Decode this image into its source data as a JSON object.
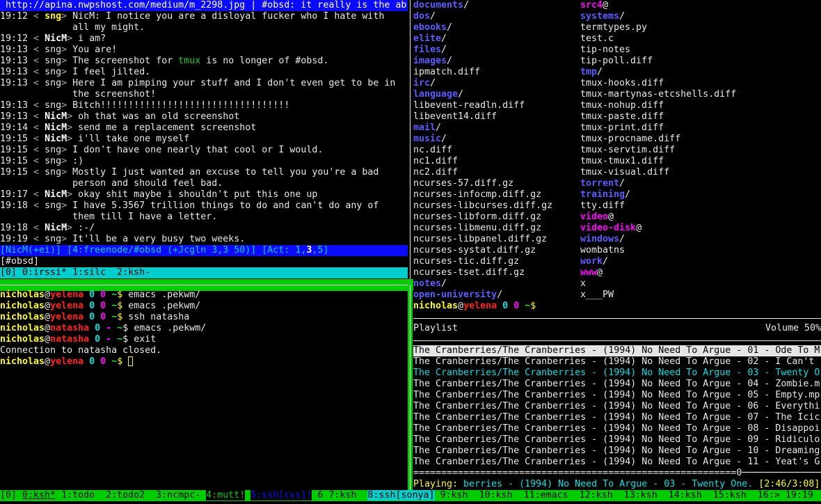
{
  "colors": {
    "fg": "#e8e8e8",
    "dim": "#a8a8a8",
    "yellow": "#ffff00",
    "red": "#ff2020",
    "cyan": "#00e0e0",
    "magenta": "#ff00ff",
    "green": "#00cd00",
    "tmux_green": "#20d020",
    "dir": "#5c5cff",
    "blue": "#0a0aff",
    "statcyan": "#00cdcd",
    "black": "#000000",
    "white": "#ffffff"
  },
  "irssi": {
    "topic": " http://apina.nwpshost.com/medium/m_2298.jpg | #obsd: it really is the ab",
    "messages": [
      {
        "time": "19:12",
        "nick": "sng",
        "nick_style": "highlight",
        "lines": [
          [
            [
              "NicM: I notice you are a disloyal fucker who I hate with",
              "fg"
            ]
          ],
          [
            [
              "all my might.",
              "fg"
            ]
          ]
        ]
      },
      {
        "time": "19:12",
        "nick": "NicM",
        "nick_style": "own",
        "lines": [
          [
            [
              "i am?",
              "fg"
            ]
          ]
        ]
      },
      {
        "time": "19:13",
        "nick": "sng",
        "nick_style": "normal",
        "lines": [
          [
            [
              "You are!",
              "fg"
            ]
          ]
        ]
      },
      {
        "time": "19:13",
        "nick": "sng",
        "nick_style": "normal",
        "lines": [
          [
            [
              "The screenshot for ",
              "fg"
            ],
            [
              "tmux",
              "tmux_green"
            ],
            [
              " is no longer of #obsd.",
              "fg"
            ]
          ]
        ]
      },
      {
        "time": "19:13",
        "nick": "sng",
        "nick_style": "normal",
        "lines": [
          [
            [
              "I feel jilted.",
              "fg"
            ]
          ]
        ]
      },
      {
        "time": "19:13",
        "nick": "sng",
        "nick_style": "normal",
        "lines": [
          [
            [
              "Here I am pimping your stuff and I don't even get to be in",
              "fg"
            ]
          ],
          [
            [
              "the screenshot!",
              "fg"
            ]
          ]
        ]
      },
      {
        "time": "19:13",
        "nick": "sng",
        "nick_style": "normal",
        "lines": [
          [
            [
              "Bitch!!!!!!!!!!!!!!!!!!!!!!!!!!!!!!!!!!",
              "fg"
            ]
          ]
        ]
      },
      {
        "time": "19:13",
        "nick": "NicM",
        "nick_style": "own",
        "lines": [
          [
            [
              "oh that was an old screenshot",
              "fg"
            ]
          ]
        ]
      },
      {
        "time": "19:14",
        "nick": "NicM",
        "nick_style": "own",
        "lines": [
          [
            [
              "send me a replacement screenshot",
              "fg"
            ]
          ]
        ]
      },
      {
        "time": "19:15",
        "nick": "NicM",
        "nick_style": "own",
        "lines": [
          [
            [
              "i'll take one myself",
              "fg"
            ]
          ]
        ]
      },
      {
        "time": "19:15",
        "nick": "sng",
        "nick_style": "normal",
        "lines": [
          [
            [
              "I don't have one nearly that cool or I would.",
              "fg"
            ]
          ]
        ]
      },
      {
        "time": "19:15",
        "nick": "sng",
        "nick_style": "normal",
        "lines": [
          [
            [
              ":)",
              "fg"
            ]
          ]
        ]
      },
      {
        "time": "19:15",
        "nick": "sng",
        "nick_style": "normal",
        "lines": [
          [
            [
              "Mostly I just wanted an excuse to tell you you're a bad",
              "fg"
            ]
          ],
          [
            [
              "person and should feel bad.",
              "fg"
            ]
          ]
        ]
      },
      {
        "time": "19:17",
        "nick": "NicM",
        "nick_style": "own",
        "lines": [
          [
            [
              "okay shit maybe i shouldn't put this one up",
              "fg"
            ]
          ]
        ]
      },
      {
        "time": "19:18",
        "nick": "sng",
        "nick_style": "normal",
        "lines": [
          [
            [
              "I have 5.3567 trillion things to do and can't do any of",
              "fg"
            ]
          ],
          [
            [
              "them till I have a letter.",
              "fg"
            ]
          ]
        ]
      },
      {
        "time": "19:18",
        "nick": "NicM",
        "nick_style": "own",
        "lines": [
          [
            [
              ":-/",
              "fg"
            ]
          ]
        ]
      },
      {
        "time": "19:19",
        "nick": "sng",
        "nick_style": "normal",
        "lines": [
          [
            [
              "It'll be a very busy two weeks.",
              "fg"
            ]
          ]
        ]
      }
    ],
    "statusbar": [
      [
        "[NicM(+ei)] [4:freenode/#obsd (+Jcgln 3,3 50)] [Act: ",
        "statcyan"
      ],
      [
        "1",
        "cyan"
      ],
      [
        ",",
        "statcyan"
      ],
      [
        "3",
        "white"
      ],
      [
        ",",
        "statcyan"
      ],
      [
        "5",
        "cyan"
      ],
      [
        "]",
        "statcyan"
      ]
    ],
    "input_prompt": "[#obsd]",
    "tmux_status": "[0] 0:irssi* 1:silc  2:ksh-"
  },
  "shell": {
    "lines": [
      {
        "user": "nicholas",
        "host": "yelena",
        "a": "0",
        "a_color": "cyan",
        "b": "0",
        "b_color": "magenta",
        "dollar_color": "yellow",
        "cmd": "emacs .pekwm/"
      },
      {
        "user": "nicholas",
        "host": "yelena",
        "a": "0",
        "a_color": "cyan",
        "b": "0",
        "b_color": "magenta",
        "dollar_color": "yellow",
        "cmd": "emacs .pekwm/"
      },
      {
        "user": "nicholas",
        "host": "yelena",
        "a": "0",
        "a_color": "cyan",
        "b": "0",
        "b_color": "magenta",
        "dollar_color": "yellow",
        "cmd": "ssh natasha"
      },
      {
        "user": "nicholas",
        "host": "natasha",
        "a": "0",
        "a_color": "cyan",
        "b": "-",
        "b_color": "magenta",
        "dollar_color": "fg",
        "cmd": "emacs .pekwm/"
      },
      {
        "user": "nicholas",
        "host": "natasha",
        "a": "0",
        "a_color": "cyan",
        "b": "-",
        "b_color": "magenta",
        "dollar_color": "fg",
        "cmd": "exit"
      },
      {
        "output": "Connection to natasha closed."
      },
      {
        "user": "nicholas",
        "host": "yelena",
        "a": "0",
        "a_color": "cyan",
        "b": "0",
        "b_color": "magenta",
        "dollar_color": "yellow",
        "cmd": "",
        "cursor": true
      }
    ]
  },
  "ls": {
    "left": [
      {
        "name": "documents",
        "type": "dir"
      },
      {
        "name": "dos",
        "type": "dir"
      },
      {
        "name": "ebooks",
        "type": "dir"
      },
      {
        "name": "elite",
        "type": "dir"
      },
      {
        "name": "files",
        "type": "dir"
      },
      {
        "name": "images",
        "type": "dir"
      },
      {
        "name": "ipmatch.diff",
        "type": "file"
      },
      {
        "name": "irc",
        "type": "dir"
      },
      {
        "name": "language",
        "type": "dir"
      },
      {
        "name": "libevent-readln.diff",
        "type": "file"
      },
      {
        "name": "libevent14.diff",
        "type": "file"
      },
      {
        "name": "mail",
        "type": "dir"
      },
      {
        "name": "music",
        "type": "dir"
      },
      {
        "name": "nc.diff",
        "type": "file"
      },
      {
        "name": "nc1.diff",
        "type": "file"
      },
      {
        "name": "nc2.diff",
        "type": "file"
      },
      {
        "name": "ncurses-57.diff.gz",
        "type": "file"
      },
      {
        "name": "ncurses-infocmp.diff.gz",
        "type": "file"
      },
      {
        "name": "ncurses-libcurses.diff.gz",
        "type": "file"
      },
      {
        "name": "ncurses-libform.diff.gz",
        "type": "file"
      },
      {
        "name": "ncurses-libmenu.diff.gz",
        "type": "file"
      },
      {
        "name": "ncurses-libpanel.diff.gz",
        "type": "file"
      },
      {
        "name": "ncurses-systat.diff.gz",
        "type": "file"
      },
      {
        "name": "ncurses-tic.diff.gz",
        "type": "file"
      },
      {
        "name": "ncurses-tset.diff.gz",
        "type": "file"
      },
      {
        "name": "notes",
        "type": "dir"
      },
      {
        "name": "open-university",
        "type": "dir"
      }
    ],
    "right": [
      {
        "name": "src4",
        "type": "link"
      },
      {
        "name": "systems",
        "type": "dir"
      },
      {
        "name": "termtypes.py",
        "type": "file"
      },
      {
        "name": "test.c",
        "type": "file"
      },
      {
        "name": "tip-notes",
        "type": "file"
      },
      {
        "name": "tip-poll.diff",
        "type": "file"
      },
      {
        "name": "tmp",
        "type": "dir"
      },
      {
        "name": "tmux-hooks.diff",
        "type": "file"
      },
      {
        "name": "tmux-martynas-etcshells.diff",
        "type": "file"
      },
      {
        "name": "tmux-nohup.diff",
        "type": "file"
      },
      {
        "name": "tmux-paste.diff",
        "type": "file"
      },
      {
        "name": "tmux-print.diff",
        "type": "file"
      },
      {
        "name": "tmux-procname.diff",
        "type": "file"
      },
      {
        "name": "tmux-servtim.diff",
        "type": "file"
      },
      {
        "name": "tmux-tmux1.diff",
        "type": "file"
      },
      {
        "name": "tmux-visual.diff",
        "type": "file"
      },
      {
        "name": "torrent",
        "type": "dir"
      },
      {
        "name": "training",
        "type": "dir"
      },
      {
        "name": "tty.diff",
        "type": "file"
      },
      {
        "name": "video",
        "type": "link"
      },
      {
        "name": "video-disk",
        "type": "link"
      },
      {
        "name": "windows",
        "type": "dir"
      },
      {
        "name": "wombatns",
        "type": "file"
      },
      {
        "name": "work",
        "type": "dir"
      },
      {
        "name": "www",
        "type": "link"
      },
      {
        "name": "x",
        "type": "file"
      },
      {
        "name": "x___PW",
        "type": "file"
      }
    ],
    "prompt": {
      "user": "nicholas",
      "host": "yelena",
      "a": "0",
      "b": "0"
    }
  },
  "ncmpc": {
    "title": "Playlist",
    "volume": "Volume 50%",
    "selected_index": 0,
    "playing_index": 2,
    "songs": [
      "The Cranberries/The Cranberries - (1994) No Need To Argue - 01 - Ode To M",
      "The Cranberries/The Cranberries - (1994) No Need To Argue - 02 - I Can't ",
      "The Cranberries/The Cranberries - (1994) No Need To Argue - 03 - Twenty O",
      "The Cranberries/The Cranberries - (1994) No Need To Argue - 04 - Zombie.m",
      "The Cranberries/The Cranberries - (1994) No Need To Argue - 05 - Empty.mp",
      "The Cranberries/The Cranberries - (1994) No Need To Argue - 06 - Everythi",
      "The Cranberries/The Cranberries - (1994) No Need To Argue - 07 - The Icic",
      "The Cranberries/The Cranberries - (1994) No Need To Argue - 08 - Disappoi",
      "The Cranberries/The Cranberries - (1994) No Need To Argue - 09 - Ridiculo",
      "The Cranberries/The Cranberries - (1994) No Need To Argue - 10 - Dreaming",
      "The Cranberries/The Cranberries - (1994) No Need To Argue - 11 - Yeat's G"
    ],
    "progress_bar": "==========================================================0───────────────",
    "playing_label": "Playing:",
    "playing_track": " berries - (1994) No Need To Argue - 03 - Twenty One.",
    "playing_time": " [2:46/3:08]"
  },
  "tmux_status": [
    {
      "text": "[0] ",
      "bg": "green",
      "fg": "black"
    },
    {
      "text": "0:ksh*",
      "bg": "green",
      "fg": "black",
      "underline": true
    },
    {
      "text": " 1:todo  2:todo2  3:ncmpc- ",
      "bg": "green",
      "fg": "black"
    },
    {
      "text": "4:mutt!",
      "bg": "black",
      "fg": "green"
    },
    {
      "text": " ",
      "bg": "green",
      "fg": "black"
    },
    {
      "text": "5:ssh[cvs]!",
      "bg": "black",
      "fg": "blue"
    },
    {
      "text": " 6 7:ksh  ",
      "bg": "green",
      "fg": "black"
    },
    {
      "text": "8:ssh[sonya]",
      "bg": "statcyan",
      "fg": "black"
    },
    {
      "text": " 9:ksh  10:ksh  11:emacs  12:ksh  13:ksh  14:ksh  15:ksh  16:> 19:19",
      "bg": "green",
      "fg": "black"
    }
  ]
}
